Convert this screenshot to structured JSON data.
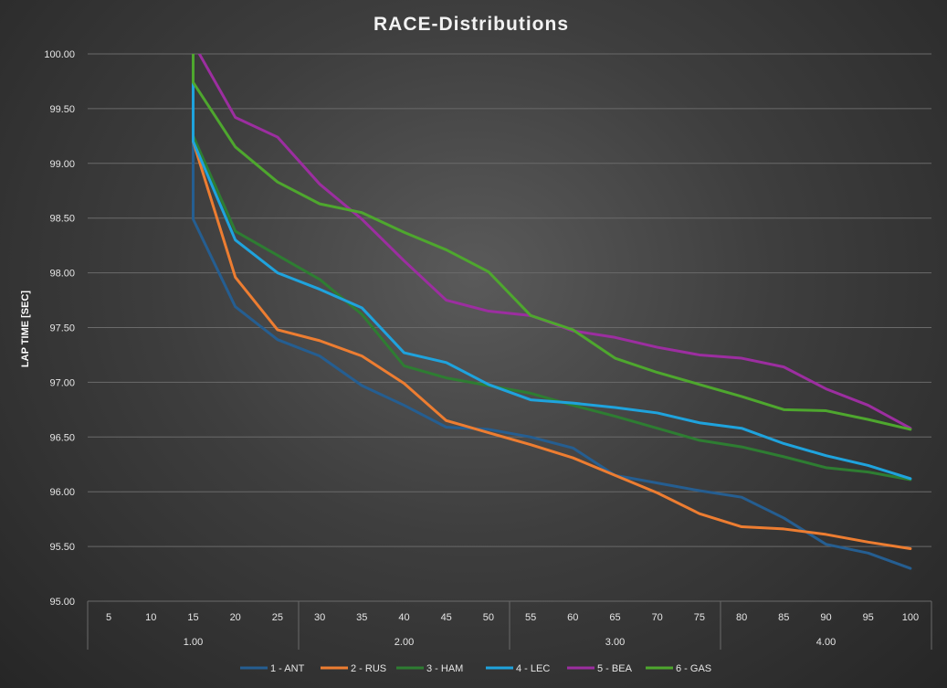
{
  "chart_data": {
    "type": "line",
    "title": "RACE-Distributions",
    "ylabel": "LAP TIME [SEC]",
    "xlabel": "",
    "ylim": [
      95.0,
      100.0
    ],
    "yticks": [
      "95.00",
      "95.50",
      "96.00",
      "96.50",
      "97.00",
      "97.50",
      "98.00",
      "98.50",
      "99.00",
      "99.50",
      "100.00"
    ],
    "x": [
      5,
      10,
      15,
      20,
      25,
      30,
      35,
      40,
      45,
      50,
      55,
      60,
      65,
      70,
      75,
      80,
      85,
      90,
      95,
      100
    ],
    "groups": [
      {
        "label": "1.00",
        "from": 5,
        "to": 25
      },
      {
        "label": "2.00",
        "from": 30,
        "to": 50
      },
      {
        "label": "3.00",
        "from": 55,
        "to": 75
      },
      {
        "label": "4.00",
        "from": 80,
        "to": 100
      }
    ],
    "series": [
      {
        "name": "1 - ANT",
        "color": "#255e91",
        "values": [
          null,
          null,
          98.49,
          97.69,
          97.39,
          97.24,
          96.97,
          96.79,
          96.59,
          96.57,
          96.5,
          96.4,
          96.15,
          96.08,
          96.01,
          95.95,
          95.76,
          95.52,
          95.44,
          95.3
        ]
      },
      {
        "name": "2 - RUS",
        "color": "#ed7d31",
        "values": [
          null,
          null,
          99.2,
          97.96,
          97.48,
          97.38,
          97.24,
          96.99,
          96.65,
          96.54,
          96.43,
          96.31,
          96.15,
          95.99,
          95.8,
          95.68,
          95.66,
          95.61,
          95.54,
          95.48
        ]
      },
      {
        "name": "3 - HAM",
        "color": "#2e7d32",
        "values": [
          null,
          null,
          99.25,
          98.38,
          98.16,
          97.94,
          97.62,
          97.15,
          97.04,
          96.97,
          96.9,
          96.79,
          96.69,
          96.58,
          96.47,
          96.41,
          96.32,
          96.22,
          96.18,
          96.11
        ]
      },
      {
        "name": "4 - LEC",
        "color": "#1fa3dd",
        "values": [
          null,
          null,
          99.2,
          98.3,
          98.0,
          97.85,
          97.68,
          97.27,
          97.18,
          96.98,
          96.84,
          96.81,
          96.77,
          96.72,
          96.63,
          96.58,
          96.44,
          96.33,
          96.24,
          96.12
        ]
      },
      {
        "name": "5 - BEA",
        "color": "#9c2ea0",
        "values": [
          null,
          null,
          100.1,
          99.42,
          99.24,
          98.81,
          98.49,
          98.11,
          97.75,
          97.65,
          97.61,
          97.47,
          97.41,
          97.32,
          97.25,
          97.22,
          97.14,
          96.94,
          96.79,
          96.58
        ]
      },
      {
        "name": "6 - GAS",
        "color": "#4ea72e",
        "values": [
          null,
          null,
          99.74,
          99.15,
          98.83,
          98.63,
          98.55,
          98.37,
          98.21,
          98.01,
          97.61,
          97.48,
          97.22,
          97.09,
          96.98,
          96.87,
          96.75,
          96.74,
          96.66,
          96.57
        ]
      }
    ]
  }
}
